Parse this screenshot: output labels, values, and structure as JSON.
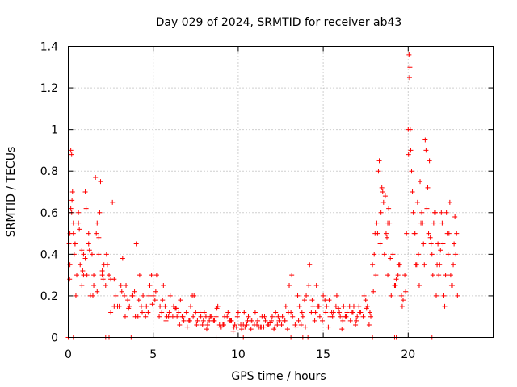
{
  "chart_data": {
    "type": "scatter",
    "title": "Day 029 of 2024, SRMTID for receiver ab43",
    "xlabel": "GPS time / hours",
    "ylabel": "SRMTID / TECUs",
    "xlim": [
      0,
      25
    ],
    "ylim": [
      0,
      1.4
    ],
    "xticks": [
      0,
      5,
      10,
      15,
      20
    ],
    "xtick_labels": [
      "0",
      "5",
      "10",
      "15",
      "20"
    ],
    "yticks": [
      0,
      0.2,
      0.4,
      0.6,
      0.8,
      1.0,
      1.2,
      1.4
    ],
    "ytick_labels": [
      "0",
      "0.2",
      "0.4",
      "0.6",
      "0.8",
      "1",
      "1.2",
      "1.4"
    ],
    "grid": true,
    "marker": "+",
    "color": "#ff0000",
    "series": [
      {
        "name": "ab43",
        "x": [
          0.05,
          0.1,
          0.15,
          0.2,
          0.25,
          0.3,
          0.35,
          0.4,
          0.5,
          0.6,
          0.7,
          0.8,
          0.9,
          1.0,
          1.1,
          1.2,
          1.3,
          1.4,
          1.5,
          1.6,
          1.7,
          1.8,
          1.9,
          2.0,
          2.1,
          2.2,
          2.4,
          2.6,
          2.8,
          3.0,
          3.2,
          3.4,
          3.6,
          3.8,
          4.0,
          4.2,
          4.4,
          4.6,
          4.8,
          5.0,
          5.2,
          5.4,
          5.6,
          5.8,
          6.0,
          6.2,
          6.4,
          6.6,
          6.8,
          7.0,
          7.2,
          7.4,
          7.6,
          7.8,
          8.0,
          8.2,
          8.4,
          8.6,
          8.8,
          9.0,
          9.2,
          9.4,
          9.6,
          9.8,
          10.0,
          10.2,
          10.4,
          10.6,
          10.8,
          11.0,
          11.2,
          11.4,
          11.6,
          11.8,
          12.0,
          12.2,
          12.4,
          12.6,
          12.8,
          13.0,
          13.2,
          13.4,
          13.6,
          13.8,
          14.0,
          14.2,
          14.4,
          14.6,
          14.8,
          15.0,
          15.2,
          15.4,
          15.6,
          15.8,
          16.0,
          16.2,
          16.4,
          16.6,
          16.8,
          17.0,
          17.2,
          17.4,
          17.6,
          17.8,
          18.0,
          18.1,
          18.2,
          18.3,
          18.4,
          18.5,
          18.6,
          18.7,
          18.8,
          18.9,
          19.0,
          19.2,
          19.4,
          19.6,
          19.8,
          19.9,
          20.0,
          20.05,
          20.1,
          20.2,
          20.3,
          20.4,
          20.6,
          20.8,
          21.0,
          21.2,
          21.4,
          21.6,
          21.8,
          22.0,
          22.2,
          22.4,
          22.6,
          22.8,
          0.1,
          0.2,
          0.3,
          0.4,
          0.6,
          0.8,
          1.0,
          1.2,
          1.5,
          1.7,
          2.0,
          2.3,
          2.7,
          3.1,
          3.5,
          3.9,
          4.3,
          4.7,
          5.1,
          5.5,
          5.9,
          6.3,
          6.7,
          7.1,
          7.5,
          7.9,
          8.3,
          8.7,
          9.1,
          9.5,
          9.9,
          10.3,
          10.7,
          11.1,
          11.5,
          11.9,
          12.3,
          12.7,
          13.1,
          13.5,
          13.9,
          14.3,
          14.7,
          15.1,
          15.5,
          15.9,
          16.3,
          16.7,
          17.1,
          17.5,
          17.9,
          18.15,
          18.35,
          18.55,
          18.75,
          18.95,
          19.3,
          19.7,
          20.15,
          20.5,
          20.7,
          20.9,
          21.1,
          21.3,
          21.5,
          21.7,
          21.9,
          22.1,
          22.3,
          22.5,
          22.7,
          22.9,
          0.15,
          0.9,
          1.8,
          2.5,
          3.3,
          4.1,
          4.9,
          5.7,
          6.5,
          7.3,
          8.1,
          8.9,
          9.7,
          10.5,
          11.3,
          12.1,
          12.9,
          13.7,
          14.5,
          15.3,
          16.1,
          16.9,
          17.7,
          18.45,
          18.85,
          19.5,
          20.25,
          20.75,
          21.25,
          21.75,
          22.25,
          22.75,
          0.08,
          0.22,
          0.45,
          0.65,
          0.85,
          1.05,
          1.25,
          1.45,
          1.65,
          1.85,
          2.05,
          2.25,
          2.5,
          2.7,
          2.9,
          3.15,
          3.35,
          3.55,
          3.75,
          3.95,
          4.15,
          4.35,
          4.55,
          4.75,
          4.95,
          5.15,
          5.35,
          5.55,
          5.75,
          5.95,
          6.15,
          6.35,
          6.55,
          6.75,
          6.95,
          7.15,
          7.35,
          7.55,
          7.75,
          7.95,
          8.15,
          8.35,
          8.55,
          8.75,
          8.95,
          9.15,
          9.35,
          9.55,
          9.75,
          9.95,
          10.15,
          10.35,
          10.55,
          10.75,
          10.95,
          11.15,
          11.35,
          11.55,
          11.75,
          11.95,
          12.15,
          12.35,
          12.55,
          12.75,
          12.95,
          13.15,
          13.35,
          13.55,
          13.75,
          13.95,
          14.15,
          14.35,
          14.55,
          14.75,
          14.95,
          15.15,
          15.35,
          15.55,
          15.75,
          15.95,
          16.15,
          16.35,
          16.55,
          16.75,
          16.95,
          17.15,
          17.35,
          17.55,
          17.75,
          17.95,
          18.05,
          18.25,
          18.65,
          18.8,
          19.1,
          19.25,
          19.45,
          19.65,
          19.85,
          20.02,
          20.08,
          20.12,
          20.35,
          20.45,
          20.55,
          20.65,
          20.85,
          20.95,
          21.05,
          21.15,
          21.35,
          21.45,
          21.55,
          21.65,
          21.85,
          21.95,
          22.05,
          22.15,
          22.35,
          22.45,
          22.55,
          22.65,
          22.85,
          0.0,
          0.3,
          2.2,
          2.4,
          3.7,
          8.7,
          10.3,
          13.1,
          13.8,
          14.1,
          17.9,
          19.2,
          19.3,
          21.4
        ],
        "y": [
          0.45,
          0.5,
          0.9,
          0.88,
          0.7,
          0.55,
          0.4,
          0.45,
          0.3,
          0.6,
          0.35,
          0.25,
          0.4,
          0.7,
          0.3,
          0.45,
          0.2,
          0.4,
          0.25,
          0.77,
          0.55,
          0.48,
          0.75,
          0.3,
          0.35,
          0.25,
          0.3,
          0.65,
          0.2,
          0.15,
          0.38,
          0.25,
          0.15,
          0.2,
          0.45,
          0.3,
          0.2,
          0.15,
          0.25,
          0.2,
          0.3,
          0.15,
          0.25,
          0.1,
          0.2,
          0.15,
          0.1,
          0.18,
          0.08,
          0.05,
          0.15,
          0.2,
          0.08,
          0.1,
          0.12,
          0.06,
          0.1,
          0.08,
          0.15,
          0.05,
          0.1,
          0.12,
          0.08,
          0.06,
          0.12,
          0.04,
          0.05,
          0.1,
          0.08,
          0.12,
          0.05,
          0.1,
          0.08,
          0.06,
          0.1,
          0.12,
          0.08,
          0.1,
          0.15,
          0.25,
          0.1,
          0.05,
          0.15,
          0.1,
          0.2,
          0.35,
          0.15,
          0.25,
          0.1,
          0.2,
          0.15,
          0.1,
          0.12,
          0.2,
          0.1,
          0.15,
          0.12,
          0.08,
          0.15,
          0.1,
          0.12,
          0.2,
          0.15,
          0.1,
          0.4,
          0.3,
          0.5,
          0.85,
          0.6,
          0.7,
          0.4,
          0.5,
          0.3,
          0.55,
          0.2,
          0.25,
          0.3,
          0.2,
          0.3,
          0.5,
          1.0,
          1.36,
          1.3,
          0.8,
          0.6,
          0.5,
          0.4,
          0.6,
          0.95,
          0.5,
          0.4,
          0.6,
          0.3,
          0.55,
          0.3,
          0.5,
          0.25,
          0.4,
          0.35,
          0.6,
          0.5,
          0.45,
          0.55,
          0.42,
          0.38,
          0.5,
          0.3,
          0.22,
          0.32,
          0.35,
          0.15,
          0.25,
          0.18,
          0.22,
          0.15,
          0.12,
          0.18,
          0.12,
          0.1,
          0.14,
          0.1,
          0.08,
          0.12,
          0.06,
          0.08,
          0.1,
          0.06,
          0.08,
          0.05,
          0.06,
          0.08,
          0.06,
          0.05,
          0.07,
          0.06,
          0.08,
          0.12,
          0.2,
          0.18,
          0.12,
          0.15,
          0.18,
          0.12,
          0.14,
          0.1,
          0.12,
          0.15,
          0.18,
          0.35,
          0.55,
          0.45,
          0.65,
          0.48,
          0.38,
          0.28,
          0.18,
          0.9,
          0.35,
          0.75,
          0.45,
          0.62,
          0.48,
          0.55,
          0.35,
          0.42,
          0.2,
          0.5,
          0.3,
          0.45,
          0.2,
          0.62,
          0.3,
          0.4,
          0.28,
          0.2,
          0.1,
          0.3,
          0.15,
          0.12,
          0.2,
          0.1,
          0.06,
          0.03,
          0.06,
          0.05,
          0.04,
          0.04,
          0.06,
          0.08,
          0.05,
          0.04,
          0.06,
          0.06,
          0.72,
          0.62,
          0.35,
          0.7,
          0.55,
          0.85,
          0.45,
          0.6,
          0.58,
          0.28,
          0.66,
          0.2,
          0.52,
          0.32,
          0.62,
          0.42,
          0.2,
          0.5,
          0.6,
          0.28,
          0.4,
          0.12,
          0.28,
          0.15,
          0.22,
          0.1,
          0.14,
          0.2,
          0.1,
          0.18,
          0.12,
          0.1,
          0.2,
          0.16,
          0.22,
          0.1,
          0.18,
          0.08,
          0.12,
          0.1,
          0.14,
          0.06,
          0.1,
          0.12,
          0.08,
          0.1,
          0.06,
          0.12,
          0.08,
          0.04,
          0.1,
          0.08,
          0.14,
          0.05,
          0.06,
          0.1,
          0.08,
          0.05,
          0.1,
          0.06,
          0.12,
          0.08,
          0.04,
          0.06,
          0.08,
          0.05,
          0.1,
          0.06,
          0.08,
          0.05,
          0.1,
          0.06,
          0.08,
          0.12,
          0.3,
          0.06,
          0.08,
          0.12,
          0.05,
          0.25,
          0.18,
          0.12,
          0.15,
          0.08,
          0.12,
          0.18,
          0.1,
          0.15,
          0.12,
          0.08,
          0.1,
          0.15,
          0.12,
          0.08,
          0.12,
          0.1,
          0.14,
          0.12,
          0.22,
          0.5,
          0.8,
          0.68,
          0.55,
          0.4,
          0.25,
          0.35,
          0.15,
          0.22,
          0.88,
          1.25,
          1.0,
          0.5,
          0.35,
          0.65,
          0.25,
          0.55,
          0.35,
          0.9,
          0.72,
          0.45,
          0.3,
          0.6,
          0.2,
          0.35,
          0.6,
          0.45,
          0.15,
          0.4,
          0.65,
          0.25,
          0.35,
          0.5,
          0.0,
          0.0,
          0.0,
          0.0,
          0.0,
          0.0,
          0.0,
          0.0,
          0.0,
          0.0,
          0.0,
          0.0,
          0.0,
          0.0
        ]
      }
    ]
  }
}
